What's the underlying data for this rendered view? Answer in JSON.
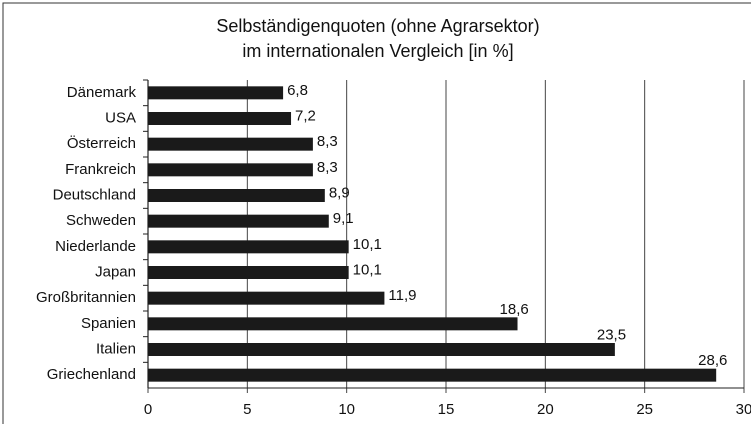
{
  "chart_data": {
    "type": "bar",
    "orientation": "horizontal",
    "title": [
      "Selbständigenquoten (ohne Agrarsektor)",
      "im internationalen Vergleich [in %]"
    ],
    "categories": [
      "Dänemark",
      "USA",
      "Österreich",
      "Frankreich",
      "Deutschland",
      "Schweden",
      "Niederlande",
      "Japan",
      "Großbritannien",
      "Spanien",
      "Italien",
      "Griechenland"
    ],
    "values": [
      6.8,
      7.2,
      8.3,
      8.3,
      8.9,
      9.1,
      10.1,
      10.1,
      11.9,
      18.6,
      23.5,
      28.6
    ],
    "value_labels": [
      "6,8",
      "7,2",
      "8,3",
      "8,3",
      "8,9",
      "9,1",
      "10,1",
      "10,1",
      "11,9",
      "18,6",
      "23,5",
      "28,6"
    ],
    "color": "#1a1a1a",
    "xlim": [
      0,
      30
    ],
    "xticks": [
      0,
      5,
      10,
      15,
      20,
      25,
      30
    ],
    "grid": true
  }
}
